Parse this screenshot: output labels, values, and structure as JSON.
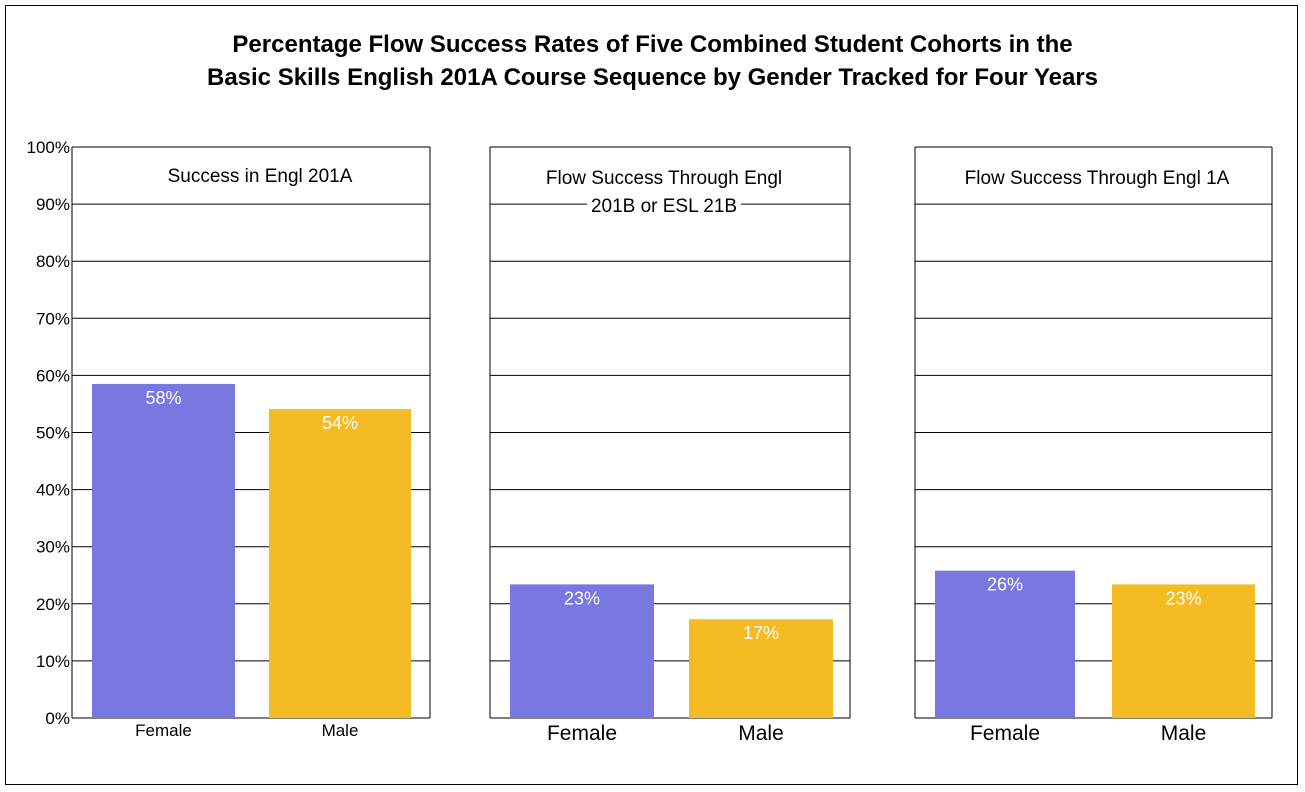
{
  "title_lines": [
    "Percentage Flow Success Rates of Five Combined Student Cohorts in the",
    "Basic Skills English 201A Course Sequence by Gender Tracked for Four Years"
  ],
  "colors": {
    "female": "#7878E0",
    "male": "#F5BB25",
    "grid": "#000000"
  },
  "chart_data": [
    {
      "type": "bar",
      "title": "Success in Engl 201A",
      "categories": [
        "Female",
        "Male"
      ],
      "values": [
        58.5,
        54.1
      ],
      "data_labels": [
        "58%",
        "54%"
      ],
      "ylim": [
        0,
        100
      ],
      "yticks": [
        "0%",
        "10%",
        "20%",
        "30%",
        "40%",
        "50%",
        "60%",
        "70%",
        "80%",
        "90%",
        "100%"
      ],
      "grid": true
    },
    {
      "type": "bar",
      "title": "Flow Success Through Engl 201B or ESL 21B",
      "categories": [
        "Female",
        "Male"
      ],
      "values": [
        23.4,
        17.3
      ],
      "data_labels": [
        "23%",
        "17%"
      ],
      "ylim": [
        0,
        100
      ],
      "grid": true
    },
    {
      "type": "bar",
      "title": "Flow Success Through Engl 1A",
      "categories": [
        "Female",
        "Male"
      ],
      "values": [
        25.8,
        23.4
      ],
      "data_labels": [
        "26%",
        "23%"
      ],
      "ylim": [
        0,
        100
      ],
      "grid": true
    }
  ]
}
